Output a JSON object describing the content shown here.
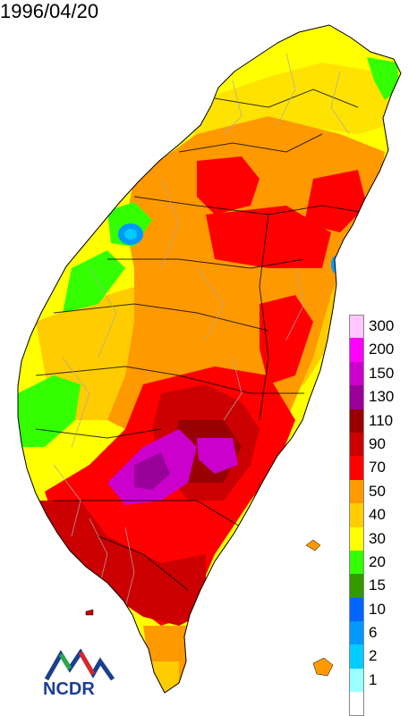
{
  "date": "1996/04/20",
  "legend": [
    {
      "label": "300",
      "color": "#ffc6ff"
    },
    {
      "label": "200",
      "color": "#ff00ff"
    },
    {
      "label": "150",
      "color": "#cc00cc"
    },
    {
      "label": "130",
      "color": "#990099"
    },
    {
      "label": "110",
      "color": "#990000"
    },
    {
      "label": "90",
      "color": "#cc0000"
    },
    {
      "label": "70",
      "color": "#ff0000"
    },
    {
      "label": "50",
      "color": "#ff9900"
    },
    {
      "label": "40",
      "color": "#ffcc00"
    },
    {
      "label": "30",
      "color": "#ffff00"
    },
    {
      "label": "20",
      "color": "#33ff00"
    },
    {
      "label": "15",
      "color": "#339900"
    },
    {
      "label": "10",
      "color": "#0066ff"
    },
    {
      "label": "6",
      "color": "#0099ff"
    },
    {
      "label": "2",
      "color": "#00ccff"
    },
    {
      "label": "1",
      "color": "#99ffff"
    },
    {
      "label": "",
      "color": "#ffffff"
    }
  ],
  "logo": {
    "text": "NCDR"
  }
}
